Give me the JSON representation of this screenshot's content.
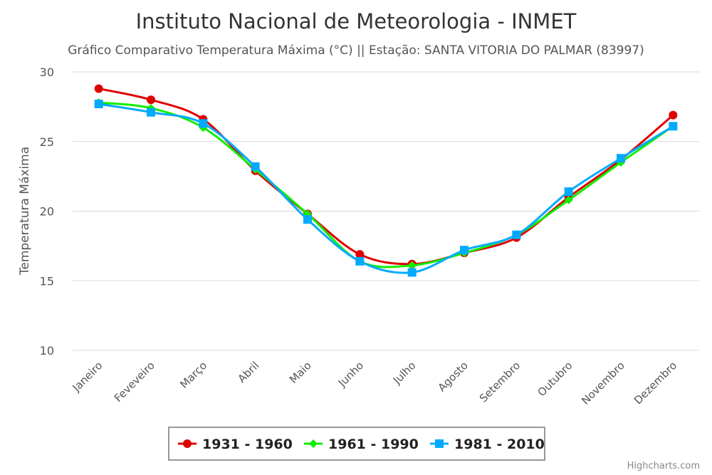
{
  "chart_data": {
    "type": "line",
    "title": "Instituto Nacional de Meteorologia - INMET",
    "subtitle": "Gráfico Comparativo Temperatura Máxima (°C) || Estação: SANTA VITORIA DO PALMAR (83997)",
    "xlabel": "",
    "ylabel": "Temperatura Máxima",
    "ylim": [
      10,
      30
    ],
    "yticks": [
      "10",
      "15",
      "20",
      "25",
      "30"
    ],
    "grid": true,
    "legend_position": "bottom-center",
    "credits": "Highcharts.com",
    "categories": [
      "Janeiro",
      "Feveveiro",
      "Março",
      "Abril",
      "Maio",
      "Junho",
      "Julho",
      "Agosto",
      "Setembro",
      "Outubro",
      "Novembro",
      "Dezembro"
    ],
    "series": [
      {
        "name": "1931 - 1960",
        "color": "#e00000",
        "marker": "circle",
        "values": [
          28.8,
          28.0,
          26.6,
          22.9,
          19.8,
          16.9,
          16.2,
          17.0,
          18.1,
          21.0,
          23.7,
          26.9
        ]
      },
      {
        "name": "1961 - 1990",
        "color": "#11ee00",
        "marker": "diamond",
        "values": [
          27.8,
          27.4,
          26.0,
          23.0,
          19.8,
          16.4,
          16.1,
          17.0,
          18.3,
          20.8,
          23.5,
          26.1
        ]
      },
      {
        "name": "1981 - 2010",
        "color": "#00aaff",
        "marker": "square",
        "values": [
          27.7,
          27.1,
          26.3,
          23.2,
          19.4,
          16.4,
          15.6,
          17.2,
          18.3,
          21.4,
          23.8,
          26.1
        ]
      }
    ]
  }
}
